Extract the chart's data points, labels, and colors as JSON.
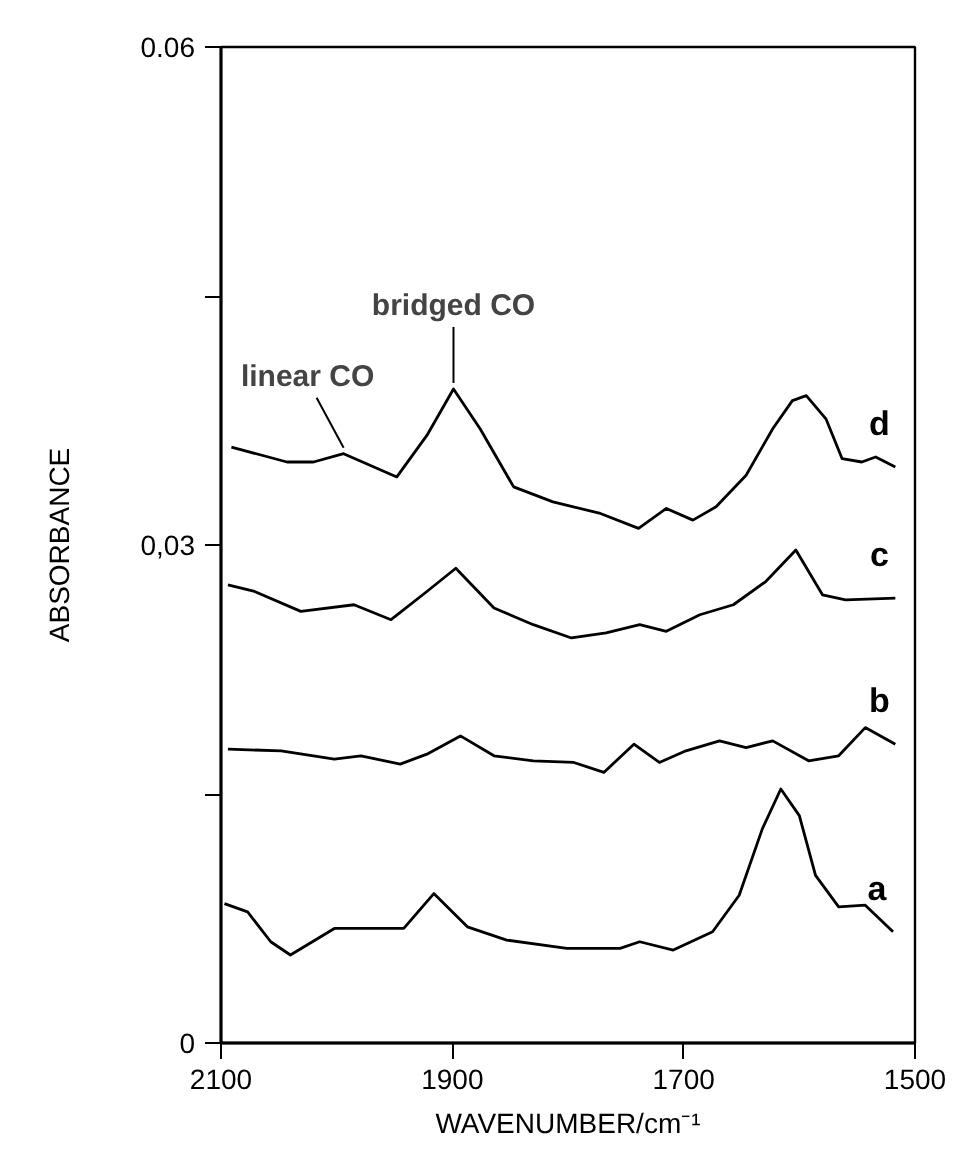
{
  "chart_data": {
    "type": "line",
    "xlabel": "WAVENUMBER/cm⁻¹",
    "ylabel": "ABSORBANCE",
    "xlim": [
      2100,
      1500
    ],
    "xticks": [
      2100,
      1900,
      1700,
      1500
    ],
    "ylim": [
      0,
      0.06
    ],
    "yticks": [
      0,
      {
        "value": 0.015,
        "label": null
      },
      {
        "value": 0.03,
        "label": "0,03"
      },
      {
        "value": 0.045,
        "label": null
      },
      {
        "value": 0.06,
        "label": "0.06"
      }
    ],
    "grid": false,
    "legend": false,
    "marker": "none",
    "line_style": "solid",
    "series": [
      {
        "name": "d",
        "color": "#000000",
        "x": [
          2091,
          2043,
          2020,
          1994,
          1948,
          1922,
          1899,
          1876,
          1847,
          1813,
          1772,
          1739,
          1715,
          1692,
          1672,
          1646,
          1623,
          1606,
          1594,
          1577,
          1563,
          1546,
          1534,
          1517
        ],
        "values": [
          0.0359,
          0.035,
          0.035,
          0.0355,
          0.0341,
          0.0366,
          0.0394,
          0.037,
          0.0335,
          0.0326,
          0.0319,
          0.031,
          0.0322,
          0.0315,
          0.0323,
          0.0342,
          0.037,
          0.0387,
          0.039,
          0.0376,
          0.0352,
          0.035,
          0.0353,
          0.0347
        ]
      },
      {
        "name": "c",
        "color": "#000000",
        "x": [
          2094,
          2071,
          2031,
          1985,
          1953,
          1922,
          1897,
          1864,
          1830,
          1797,
          1767,
          1738,
          1715,
          1686,
          1657,
          1629,
          1603,
          1580,
          1560,
          1517
        ],
        "values": [
          0.0276,
          0.0272,
          0.026,
          0.0264,
          0.0255,
          0.0272,
          0.0286,
          0.0262,
          0.0252,
          0.0244,
          0.0247,
          0.0252,
          0.0248,
          0.0258,
          0.0264,
          0.0278,
          0.0297,
          0.027,
          0.0267,
          0.0268
        ]
      },
      {
        "name": "b",
        "color": "#000000",
        "x": [
          2094,
          2048,
          2002,
          1979,
          1945,
          1922,
          1893,
          1864,
          1830,
          1795,
          1769,
          1743,
          1721,
          1698,
          1669,
          1646,
          1623,
          1592,
          1566,
          1543,
          1517
        ],
        "values": [
          0.0177,
          0.0176,
          0.0171,
          0.0173,
          0.0168,
          0.0174,
          0.0185,
          0.0173,
          0.017,
          0.0169,
          0.0163,
          0.018,
          0.0169,
          0.0176,
          0.0182,
          0.0178,
          0.0182,
          0.017,
          0.0173,
          0.019,
          0.018
        ]
      },
      {
        "name": "a",
        "color": "#000000",
        "x": [
          2097,
          2077,
          2057,
          2040,
          2002,
          1968,
          1942,
          1916,
          1887,
          1853,
          1801,
          1755,
          1738,
          1709,
          1675,
          1652,
          1632,
          1616,
          1600,
          1586,
          1566,
          1543,
          1519
        ],
        "values": [
          0.0084,
          0.0079,
          0.0061,
          0.0053,
          0.0069,
          0.0069,
          0.0069,
          0.009,
          0.007,
          0.0062,
          0.0057,
          0.0057,
          0.0061,
          0.0056,
          0.0067,
          0.0089,
          0.0129,
          0.0153,
          0.0137,
          0.0101,
          0.0082,
          0.0083,
          0.0067
        ]
      }
    ],
    "annotations": [
      {
        "text": "linear CO",
        "x": 1994,
        "y": 0.0355
      },
      {
        "text": "bridged CO",
        "x": 1899,
        "y": 0.0394
      }
    ]
  }
}
